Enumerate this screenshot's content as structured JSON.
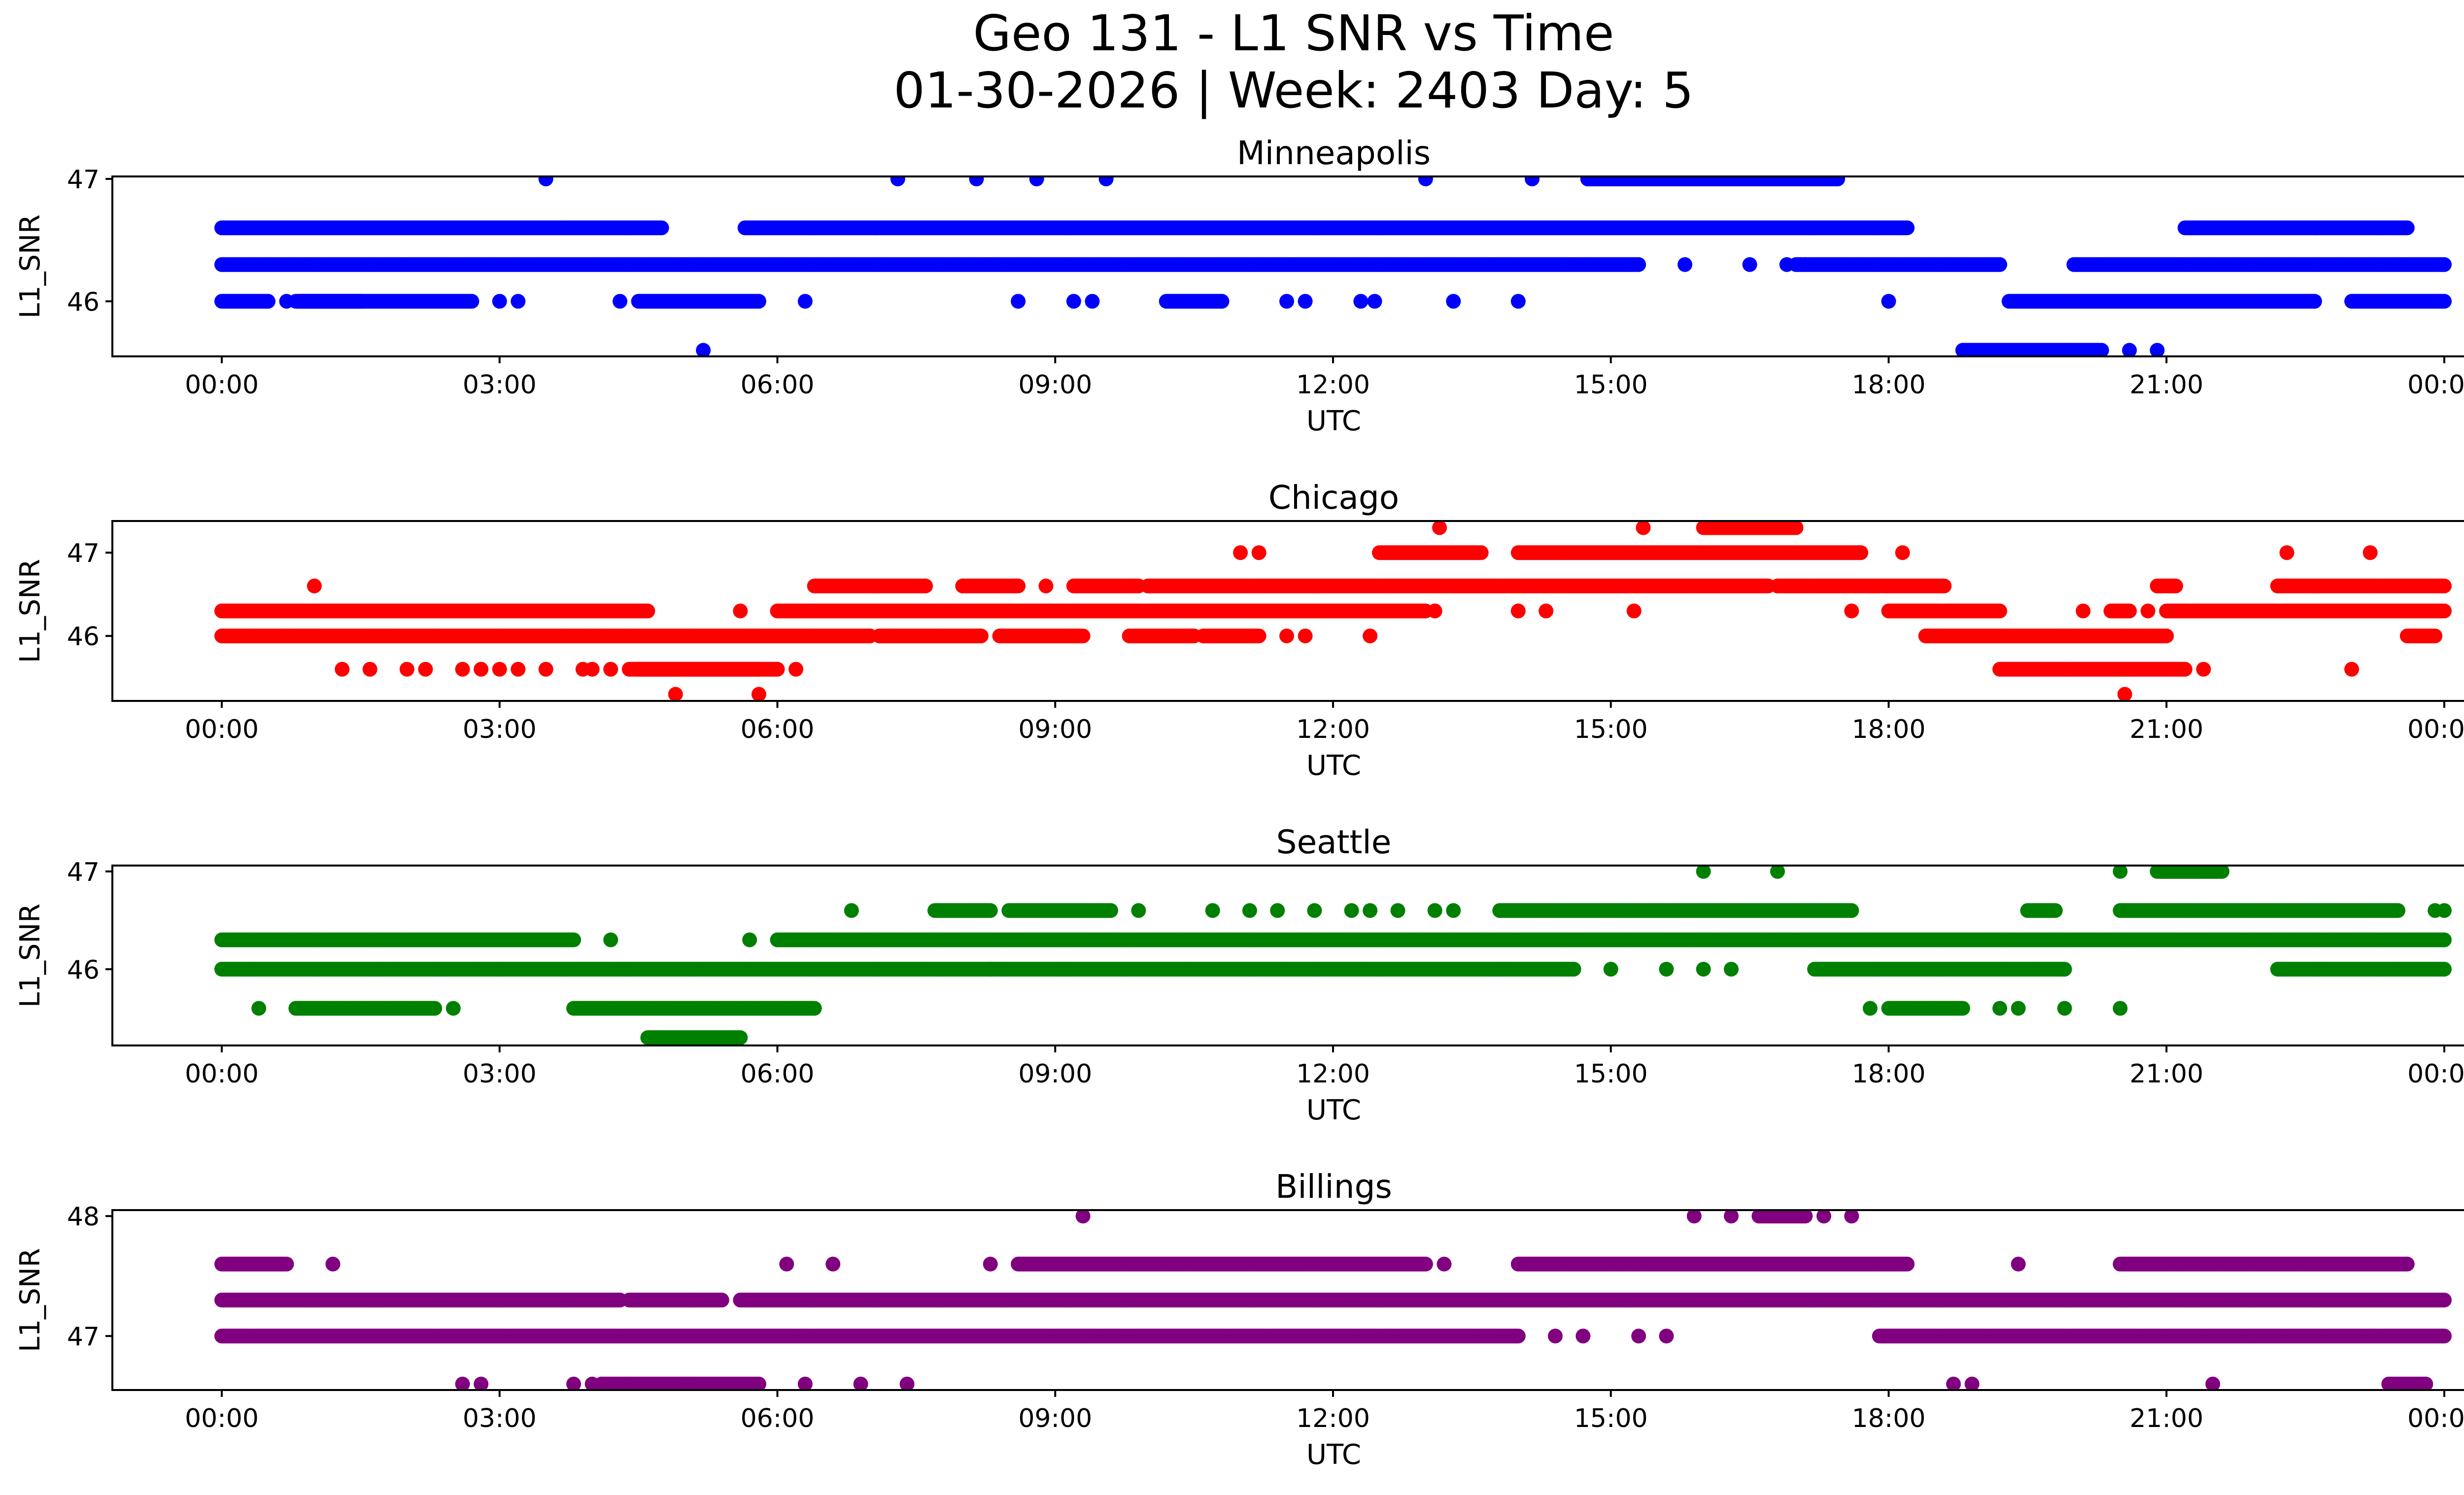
{
  "figure": {
    "title_line1": "Geo 131 - L1 SNR vs Time",
    "title_line2": "01-30-2026 | Week: 2403 Day: 5"
  },
  "chart_data": [
    {
      "type": "scatter",
      "title": "Minneapolis",
      "color": "#0000ff",
      "xlabel": "UTC",
      "ylabel": "L1_SNR",
      "xlim_hours": [
        -0.4,
        24.4
      ],
      "ylim": [
        45.55,
        47.02
      ],
      "yticks": [
        46,
        47
      ],
      "xtick_labels": [
        "00:00",
        "03:00",
        "06:00",
        "09:00",
        "12:00",
        "15:00",
        "18:00",
        "21:00",
        "00:00"
      ],
      "xtick_hours": [
        0,
        3,
        6,
        9,
        12,
        15,
        18,
        21,
        24
      ],
      "series": [
        {
          "y": 47.0,
          "segments": [
            [
              14.75,
              17.45
            ]
          ],
          "points": [
            3.5,
            7.3,
            8.15,
            8.8,
            9.55,
            13.0,
            14.15
          ]
        },
        {
          "y": 46.6,
          "segments": [
            [
              0.0,
              4.75
            ],
            [
              5.65,
              18.2
            ],
            [
              21.2,
              23.6
            ]
          ],
          "points": []
        },
        {
          "y": 46.3,
          "segments": [
            [
              0.0,
              15.3
            ],
            [
              17.0,
              19.2
            ],
            [
              20.0,
              24.0
            ]
          ],
          "points": [
            15.8,
            16.5,
            16.9,
            17.1
          ]
        },
        {
          "y": 46.0,
          "segments": [
            [
              0.0,
              0.5
            ],
            [
              0.8,
              1.5
            ],
            [
              0.85,
              2.7
            ],
            [
              4.5,
              5.8
            ],
            [
              10.2,
              10.8
            ],
            [
              19.3,
              22.6
            ],
            [
              23.0,
              24.0
            ]
          ],
          "points": [
            0.7,
            3.0,
            3.2,
            4.3,
            6.3,
            8.6,
            9.2,
            9.4,
            11.5,
            11.7,
            12.3,
            12.45,
            13.3,
            14.0,
            18.0
          ]
        },
        {
          "y": 45.6,
          "segments": [
            [
              18.8,
              20.3
            ]
          ],
          "points": [
            5.2,
            20.6,
            20.9
          ]
        }
      ]
    },
    {
      "type": "scatter",
      "title": "Chicago",
      "color": "#ff0000",
      "xlabel": "UTC",
      "ylabel": "L1_SNR",
      "xlim_hours": [
        -0.4,
        24.4
      ],
      "ylim": [
        45.22,
        47.38
      ],
      "yticks": [
        46,
        47
      ],
      "xtick_labels": [
        "00:00",
        "03:00",
        "06:00",
        "09:00",
        "12:00",
        "15:00",
        "18:00",
        "21:00",
        "00:00"
      ],
      "xtick_hours": [
        0,
        3,
        6,
        9,
        12,
        15,
        18,
        21,
        24
      ],
      "series": [
        {
          "y": 47.3,
          "segments": [
            [
              16.0,
              17.0
            ]
          ],
          "points": [
            13.15,
            15.35
          ]
        },
        {
          "y": 47.0,
          "segments": [
            [
              12.5,
              13.6
            ],
            [
              14.0,
              17.7
            ]
          ],
          "points": [
            11.0,
            11.2,
            18.15,
            22.3,
            23.2
          ]
        },
        {
          "y": 46.6,
          "segments": [
            [
              6.4,
              7.6
            ],
            [
              8.0,
              8.6
            ],
            [
              9.2,
              9.9
            ],
            [
              10.0,
              16.7
            ],
            [
              16.8,
              18.6
            ],
            [
              20.9,
              21.1
            ],
            [
              22.2,
              24.0
            ]
          ],
          "points": [
            1.0,
            8.9
          ]
        },
        {
          "y": 46.3,
          "segments": [
            [
              0.0,
              4.2
            ],
            [
              4.2,
              4.6
            ],
            [
              6.0,
              13.0
            ],
            [
              18.0,
              19.2
            ],
            [
              20.4,
              20.6
            ],
            [
              21.0,
              24.0
            ]
          ],
          "points": [
            5.6,
            13.1,
            14.0,
            14.3,
            15.25,
            17.6,
            20.1,
            20.8
          ]
        },
        {
          "y": 46.0,
          "segments": [
            [
              0.0,
              7.0
            ],
            [
              7.1,
              8.2
            ],
            [
              8.4,
              9.3
            ],
            [
              9.8,
              10.5
            ],
            [
              10.6,
              11.2
            ],
            [
              18.4,
              21.0
            ],
            [
              23.6,
              23.9
            ]
          ],
          "points": [
            11.5,
            11.7,
            12.4
          ]
        },
        {
          "y": 45.6,
          "segments": [
            [
              4.5,
              6.0
            ],
            [
              4.4,
              5.8
            ],
            [
              19.2,
              21.2
            ]
          ],
          "points": [
            1.3,
            1.6,
            2.0,
            2.2,
            2.6,
            2.8,
            3.0,
            3.2,
            3.5,
            3.9,
            4.0,
            4.2,
            6.2,
            21.4,
            23.0
          ]
        },
        {
          "y": 45.3,
          "segments": [],
          "points": [
            4.9,
            5.8,
            20.55
          ]
        }
      ]
    },
    {
      "type": "scatter",
      "title": "Seattle",
      "color": "#008000",
      "xlabel": "UTC",
      "ylabel": "L1_SNR",
      "xlim_hours": [
        -0.4,
        24.4
      ],
      "ylim": [
        45.22,
        47.06
      ],
      "yticks": [
        46,
        47
      ],
      "xtick_labels": [
        "00:00",
        "03:00",
        "06:00",
        "09:00",
        "12:00",
        "15:00",
        "18:00",
        "21:00",
        "00:00"
      ],
      "xtick_hours": [
        0,
        3,
        6,
        9,
        12,
        15,
        18,
        21,
        24
      ],
      "series": [
        {
          "y": 47.0,
          "segments": [
            [
              20.9,
              21.6
            ]
          ],
          "points": [
            16.0,
            16.8,
            20.5,
            21.05,
            21.3
          ]
        },
        {
          "y": 46.6,
          "segments": [
            [
              7.7,
              8.3
            ],
            [
              8.5,
              9.6
            ],
            [
              13.8,
              17.6
            ],
            [
              19.5,
              19.8
            ],
            [
              20.5,
              23.5
            ]
          ],
          "points": [
            6.8,
            9.9,
            10.7,
            11.1,
            11.4,
            11.8,
            12.2,
            12.4,
            12.7,
            13.1,
            13.3,
            23.9,
            24.0
          ]
        },
        {
          "y": 46.3,
          "segments": [
            [
              0.0,
              3.8
            ],
            [
              6.0,
              24.0
            ]
          ],
          "points": [
            4.2,
            5.7
          ]
        },
        {
          "y": 46.0,
          "segments": [
            [
              0.0,
              8.3
            ],
            [
              8.3,
              14.6
            ],
            [
              17.2,
              19.9
            ],
            [
              22.2,
              24.0
            ]
          ],
          "points": [
            15.0,
            15.6,
            16.0,
            16.3
          ]
        },
        {
          "y": 45.6,
          "segments": [
            [
              0.8,
              2.3
            ],
            [
              3.8,
              6.4
            ],
            [
              18.0,
              18.8
            ]
          ],
          "points": [
            0.4,
            2.5,
            17.8,
            19.2,
            19.4,
            19.9,
            20.5
          ]
        },
        {
          "y": 45.3,
          "segments": [
            [
              4.6,
              5.6
            ]
          ],
          "points": []
        }
      ]
    },
    {
      "type": "scatter",
      "title": "Billings",
      "color": "#800080",
      "xlabel": "UTC",
      "ylabel": "L1_SNR",
      "xlim_hours": [
        -0.4,
        24.4
      ],
      "ylim": [
        46.55,
        48.05
      ],
      "yticks": [
        47,
        48
      ],
      "xtick_labels": [
        "00:00",
        "03:00",
        "06:00",
        "09:00",
        "12:00",
        "15:00",
        "18:00",
        "21:00",
        "00:00"
      ],
      "xtick_hours": [
        0,
        3,
        6,
        9,
        12,
        15,
        18,
        21,
        24
      ],
      "series": [
        {
          "y": 48.0,
          "segments": [
            [
              16.6,
              17.1
            ]
          ],
          "points": [
            9.3,
            15.9,
            16.3,
            17.3,
            17.6
          ]
        },
        {
          "y": 47.6,
          "segments": [
            [
              0.0,
              0.7
            ],
            [
              8.6,
              13.0
            ],
            [
              14.0,
              18.2
            ],
            [
              20.5,
              23.6
            ]
          ],
          "points": [
            1.2,
            6.1,
            6.6,
            8.3,
            13.2,
            19.4
          ]
        },
        {
          "y": 47.3,
          "segments": [
            [
              0.0,
              4.3
            ],
            [
              4.4,
              5.4
            ],
            [
              5.6,
              24.0
            ]
          ],
          "points": [
            5.1
          ]
        },
        {
          "y": 47.0,
          "segments": [
            [
              0.0,
              9.3
            ],
            [
              9.3,
              14.0
            ],
            [
              17.9,
              24.0
            ]
          ],
          "points": [
            14.4,
            14.7,
            15.3,
            15.6
          ]
        },
        {
          "y": 46.6,
          "segments": [
            [
              4.1,
              5.8
            ],
            [
              23.4,
              23.8
            ]
          ],
          "points": [
            2.6,
            2.8,
            3.8,
            4.0,
            6.3,
            6.9,
            7.4,
            18.7,
            18.9,
            21.5
          ]
        }
      ]
    }
  ]
}
